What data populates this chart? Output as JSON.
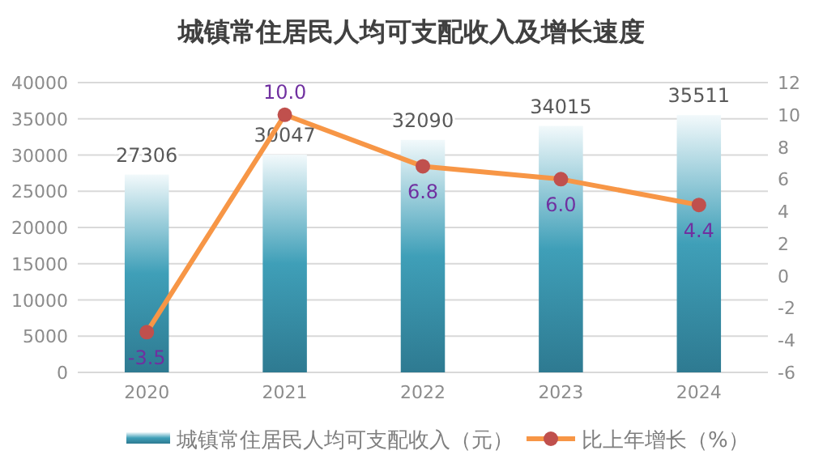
{
  "chart_data": {
    "type": "bar",
    "title": "城镇常住居民人均可支配收入及增长速度",
    "categories": [
      "2020",
      "2021",
      "2022",
      "2023",
      "2024"
    ],
    "series": [
      {
        "name": "城镇常住居民人均可支配收入（元）",
        "color": "#3f9fb8",
        "values": [
          27306,
          30047,
          32090,
          34015,
          35511
        ]
      },
      {
        "name": "比上年增长（%）",
        "type": "line",
        "axis": "y2",
        "color": "#f79646",
        "values": [
          -3.5,
          10.0,
          6.8,
          6.0,
          4.4
        ],
        "value_labels": [
          "-3.5",
          "10.0",
          "6.8",
          "6.0",
          "4.4"
        ]
      }
    ],
    "ylim": [
      0,
      40000
    ],
    "yticks": [
      0,
      5000,
      10000,
      15000,
      20000,
      25000,
      30000,
      35000,
      40000
    ],
    "y2lim": [
      -6,
      12
    ],
    "y2ticks": [
      -6,
      -4,
      -2,
      0,
      2,
      4,
      6,
      8,
      10,
      12
    ],
    "data_labels": true,
    "grid": "y",
    "legend": "bottom",
    "marker": "circle",
    "line_style": "solid"
  }
}
